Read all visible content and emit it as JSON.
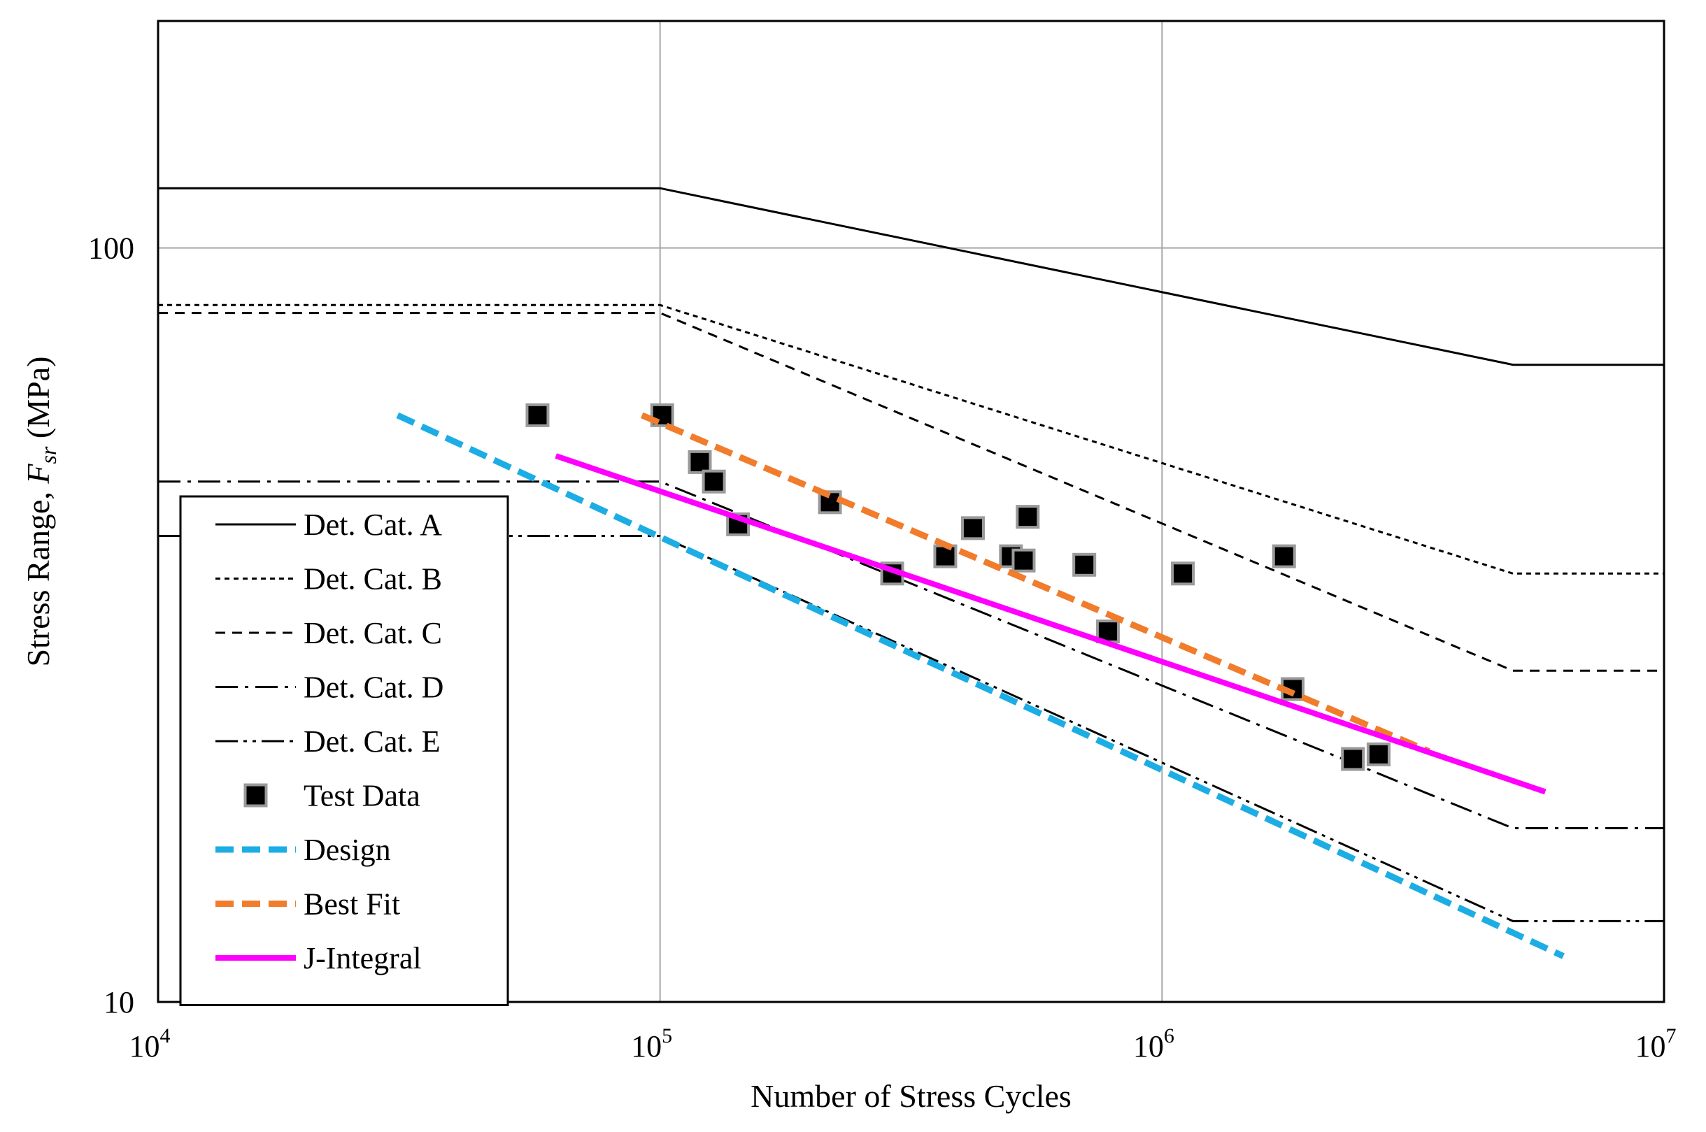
{
  "chart_data": {
    "type": "scatter",
    "title": "",
    "xlabel": "Number of Stress Cycles",
    "ylabel": {
      "prefix": "Stress Range, ",
      "var": "F",
      "sub": "sr",
      "suffix": " (MPa)"
    },
    "xscale": "log",
    "yscale": "log",
    "xlim": [
      10000,
      10000000
    ],
    "ylim": [
      10,
      200
    ],
    "x_ticks": [
      {
        "value": 10000,
        "base": "10",
        "exp": "4"
      },
      {
        "value": 100000,
        "base": "10",
        "exp": "5"
      },
      {
        "value": 1000000,
        "base": "10",
        "exp": "6"
      },
      {
        "value": 10000000,
        "base": "10",
        "exp": "7"
      }
    ],
    "y_ticks": [
      {
        "value": 10,
        "label": "10"
      },
      {
        "value": 100,
        "label": "100"
      }
    ],
    "grid": true,
    "legend_position": "lower-left",
    "series": [
      {
        "name": "Det. Cat. A",
        "kind": "line",
        "style": "solid",
        "color": "#000000",
        "points": [
          [
            10000,
            120
          ],
          [
            100000,
            120
          ],
          [
            5000000,
            70
          ],
          [
            10000000,
            70
          ]
        ]
      },
      {
        "name": "Det. Cat. B",
        "kind": "line",
        "style": "dotted",
        "color": "#000000",
        "points": [
          [
            10000,
            84
          ],
          [
            100000,
            84
          ],
          [
            5000000,
            37
          ],
          [
            10000000,
            37
          ]
        ]
      },
      {
        "name": "Det. Cat. C",
        "kind": "line",
        "style": "dashed",
        "color": "#000000",
        "points": [
          [
            10000,
            82
          ],
          [
            100000,
            82
          ],
          [
            5000000,
            27.5
          ],
          [
            10000000,
            27.5
          ]
        ]
      },
      {
        "name": "Det. Cat. D",
        "kind": "line",
        "style": "dashdot",
        "color": "#000000",
        "points": [
          [
            10000,
            49
          ],
          [
            100000,
            49
          ],
          [
            5000000,
            17
          ],
          [
            10000000,
            17
          ]
        ]
      },
      {
        "name": "Det. Cat. E",
        "kind": "line",
        "style": "dashdotdot",
        "color": "#000000",
        "points": [
          [
            10000,
            41.5
          ],
          [
            100000,
            41.5
          ],
          [
            5000000,
            12.8
          ],
          [
            10000000,
            12.8
          ]
        ]
      },
      {
        "name": "Test Data",
        "kind": "marker",
        "color": "#000000",
        "points": [
          [
            57000,
            60
          ],
          [
            101000,
            60
          ],
          [
            120000,
            52
          ],
          [
            128000,
            49
          ],
          [
            143000,
            43
          ],
          [
            218000,
            46
          ],
          [
            290000,
            37
          ],
          [
            370000,
            39
          ],
          [
            420000,
            42.5
          ],
          [
            500000,
            39
          ],
          [
            530000,
            38.5
          ],
          [
            540000,
            44
          ],
          [
            700000,
            38
          ],
          [
            780000,
            31
          ],
          [
            1100000,
            37
          ],
          [
            1750000,
            39
          ],
          [
            1820000,
            26
          ],
          [
            2400000,
            21
          ],
          [
            2700000,
            21.3
          ]
        ]
      },
      {
        "name": "Design",
        "kind": "line",
        "style": "bold-dashed",
        "color": "#1CADE4",
        "points": [
          [
            30000,
            60
          ],
          [
            6300000,
            11.5
          ]
        ]
      },
      {
        "name": "Best Fit",
        "kind": "line",
        "style": "bold-dashed",
        "color": "#F07C2C",
        "points": [
          [
            92000,
            60
          ],
          [
            3400000,
            21.5
          ]
        ]
      },
      {
        "name": "J-Integral",
        "kind": "line",
        "style": "solid-thick",
        "color": "#FF00FF",
        "points": [
          [
            62000,
            53
          ],
          [
            5800000,
            19
          ]
        ]
      }
    ]
  }
}
